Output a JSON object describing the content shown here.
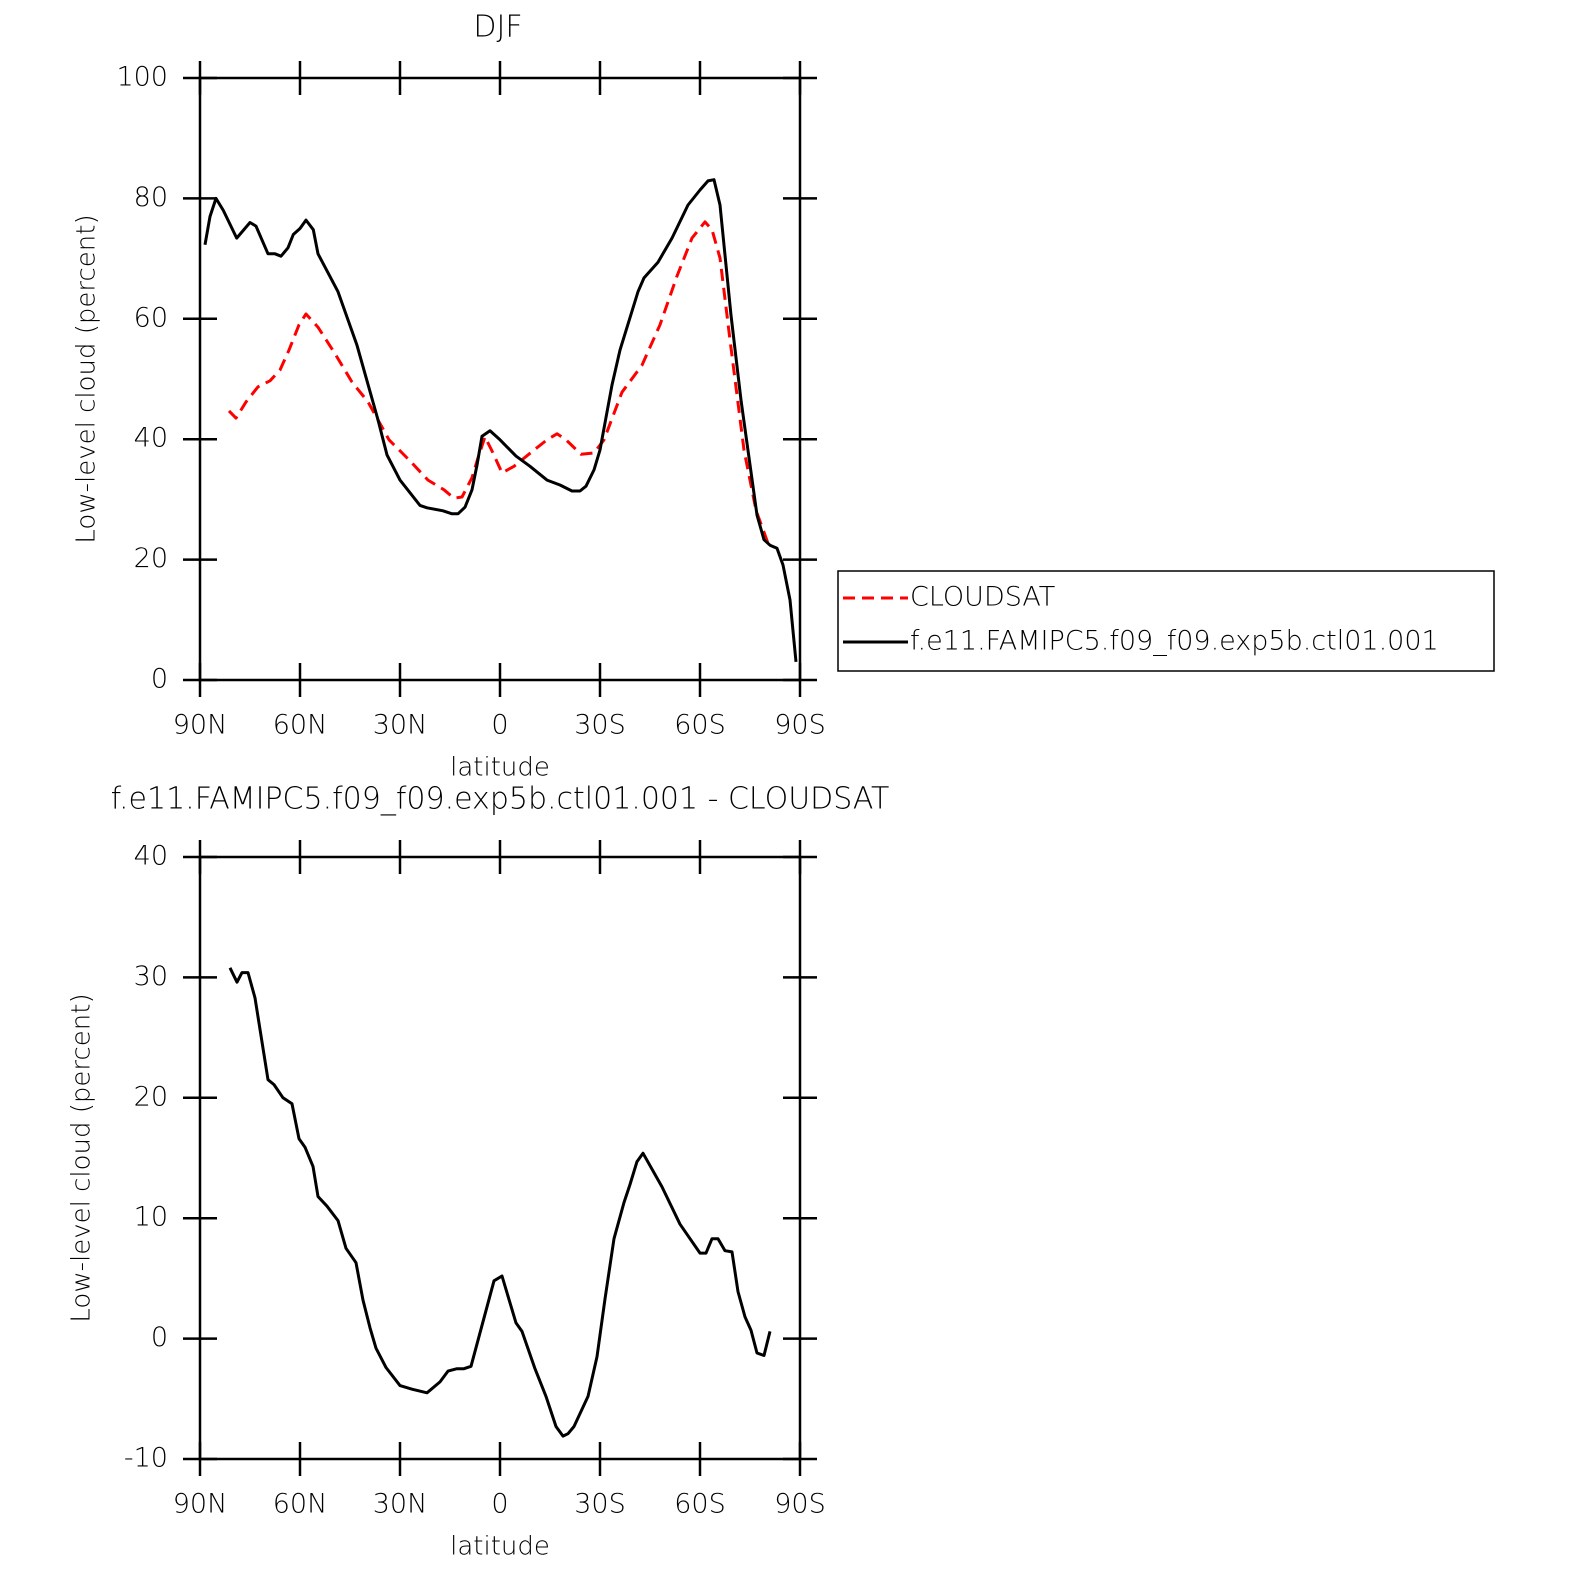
{
  "chart_data": [
    {
      "type": "line",
      "title": "DJF",
      "xlabel": "latitude",
      "ylabel": "Low-level cloud (percent)",
      "xlim": [
        90,
        -90
      ],
      "ylim": [
        0,
        100
      ],
      "xticks": [
        {
          "value": 90,
          "label": "90N"
        },
        {
          "value": 60,
          "label": "60N"
        },
        {
          "value": 30,
          "label": "30N"
        },
        0,
        {
          "value": -30,
          "label": "30S"
        },
        {
          "value": -60,
          "label": "60S"
        },
        {
          "value": -90,
          "label": "90S"
        }
      ],
      "yticks": [
        0,
        20,
        40,
        60,
        80,
        100
      ],
      "legend": "right",
      "series": [
        {
          "name": "CLOUDSAT",
          "color": "#ff0000",
          "line_style": "dashed",
          "x": [
            81.3,
            79.2,
            76.2,
            72.6,
            69,
            66,
            63.3,
            60.3,
            58.2,
            54.6,
            49.5,
            44.4,
            39.6,
            33.3,
            27,
            21.6,
            16.8,
            13.8,
            11.4,
            8.4,
            6.6,
            4.5,
            2.1,
            -0.6,
            -4.2,
            -8.4,
            -14.1,
            -17.1,
            -19.8,
            -24.3,
            -28.2,
            -31.2,
            -36.6,
            -42.6,
            -48,
            -53.1,
            -57.6,
            -61.5,
            -63.6,
            -66,
            -69,
            -73.2,
            -76.8,
            -81
          ],
          "values": [
            44.7,
            43.5,
            46.2,
            48.7,
            49.7,
            51.5,
            54.8,
            59,
            60.8,
            58.6,
            54.2,
            49.5,
            46.2,
            39.9,
            36.4,
            33.2,
            31.6,
            30.2,
            30.4,
            33.6,
            36.9,
            40.4,
            37.7,
            34.4,
            35.5,
            37.4,
            39.9,
            40.9,
            39.9,
            37.5,
            37.7,
            39.9,
            47.8,
            52.3,
            59,
            67.1,
            73.4,
            76.1,
            74.8,
            70.1,
            56.5,
            38.2,
            28.2,
            21.8
          ]
        },
        {
          "name": "f.e11.FAMIPC5.f09_f09.exp5b.ctl01.001",
          "color": "#000000",
          "line_style": "solid",
          "x": [
            88.5,
            87,
            85.2,
            83,
            79,
            75,
            73.2,
            69.6,
            67.5,
            65.7,
            63.6,
            62,
            60,
            58.2,
            56,
            54.6,
            48.6,
            42.9,
            36.6,
            33.9,
            30,
            24,
            21.9,
            17.1,
            14.4,
            12.6,
            10.5,
            8.4,
            6.9,
            5.4,
            3,
            0,
            -4.8,
            -9,
            -14.1,
            -18,
            -21.6,
            -24,
            -25.8,
            -28.2,
            -30,
            -33.6,
            -36,
            -41.4,
            -43.2,
            -47.4,
            -51.6,
            -56.4,
            -60,
            -62.4,
            -64.2,
            -66,
            -69.3,
            -72.3,
            -77.1,
            -79.2,
            -81,
            -83.1,
            -84.9,
            -87,
            -88.8
          ],
          "values": [
            72.3,
            77,
            80,
            78,
            73.4,
            76,
            75.4,
            70.8,
            70.8,
            70.4,
            71.8,
            74,
            75,
            76.4,
            74.8,
            70.8,
            64.5,
            55.6,
            43.2,
            37.4,
            33.2,
            29,
            28.6,
            28.1,
            27.6,
            27.6,
            28.7,
            31.6,
            35.7,
            40.5,
            41.4,
            39.9,
            37.2,
            35.5,
            33.2,
            32.4,
            31.4,
            31.4,
            32.2,
            34.9,
            38.2,
            49,
            54.8,
            64.5,
            66.8,
            69.4,
            73.4,
            78.9,
            81.4,
            82.9,
            83.1,
            78.9,
            60.6,
            46.5,
            27.4,
            23.3,
            22.4,
            21.9,
            19.1,
            13.3,
            3
          ]
        }
      ]
    },
    {
      "type": "line",
      "title": "f.e11.FAMIPC5.f09_f09.exp5b.ctl01.001 - CLOUDSAT",
      "xlabel": "latitude",
      "ylabel": "Low-level cloud (percent)",
      "xlim": [
        90,
        -90
      ],
      "ylim": [
        -10,
        40
      ],
      "xticks": [
        {
          "value": 90,
          "label": "90N"
        },
        {
          "value": 60,
          "label": "60N"
        },
        {
          "value": 30,
          "label": "30N"
        },
        0,
        {
          "value": -30,
          "label": "30S"
        },
        {
          "value": -60,
          "label": "60S"
        },
        {
          "value": -90,
          "label": "90S"
        }
      ],
      "yticks": [
        -10,
        0,
        10,
        20,
        30,
        40
      ],
      "series": [
        {
          "color": "#000000",
          "line_style": "solid",
          "x": [
            81,
            78.9,
            77.4,
            75.6,
            73.5,
            69.6,
            67.8,
            65.1,
            62.4,
            60.3,
            58.5,
            56.1,
            54.6,
            51.9,
            48.6,
            46.2,
            43.2,
            41.1,
            39,
            37.2,
            34.2,
            30,
            26.4,
            21.9,
            18,
            15.6,
            12.9,
            10.8,
            8.7,
            5.1,
            1.8,
            -0.6,
            -4.8,
            -6.6,
            -10.5,
            -13.8,
            -16.8,
            -18.9,
            -20.4,
            -22.2,
            -26.4,
            -29.1,
            -31.5,
            -34.2,
            -37.2,
            -39,
            -41.1,
            -42.9,
            -48.6,
            -54,
            -60,
            -61.8,
            -63.6,
            -65.4,
            -67.5,
            -69.6,
            -71.4,
            -73.5,
            -75.3,
            -77.1,
            -79.2,
            -81
          ],
          "values": [
            30.8,
            29.6,
            30.4,
            30.4,
            28.3,
            21.5,
            21.1,
            20,
            19.5,
            16.6,
            15.9,
            14.3,
            11.8,
            11,
            9.8,
            7.5,
            6.3,
            3.2,
            0.9,
            -0.8,
            -2.4,
            -3.9,
            -4.2,
            -4.5,
            -3.6,
            -2.7,
            -2.5,
            -2.5,
            -2.3,
            1.4,
            4.8,
            5.2,
            1.3,
            0.6,
            -2.5,
            -4.8,
            -7.3,
            -8.1,
            -7.9,
            -7.3,
            -4.8,
            -1.5,
            3.3,
            8.3,
            11.3,
            12.8,
            14.7,
            15.4,
            12.6,
            9.5,
            7.1,
            7.1,
            8.3,
            8.3,
            7.3,
            7.2,
            3.9,
            1.8,
            0.7,
            -1.2,
            -1.4,
            0.6
          ]
        }
      ]
    }
  ]
}
